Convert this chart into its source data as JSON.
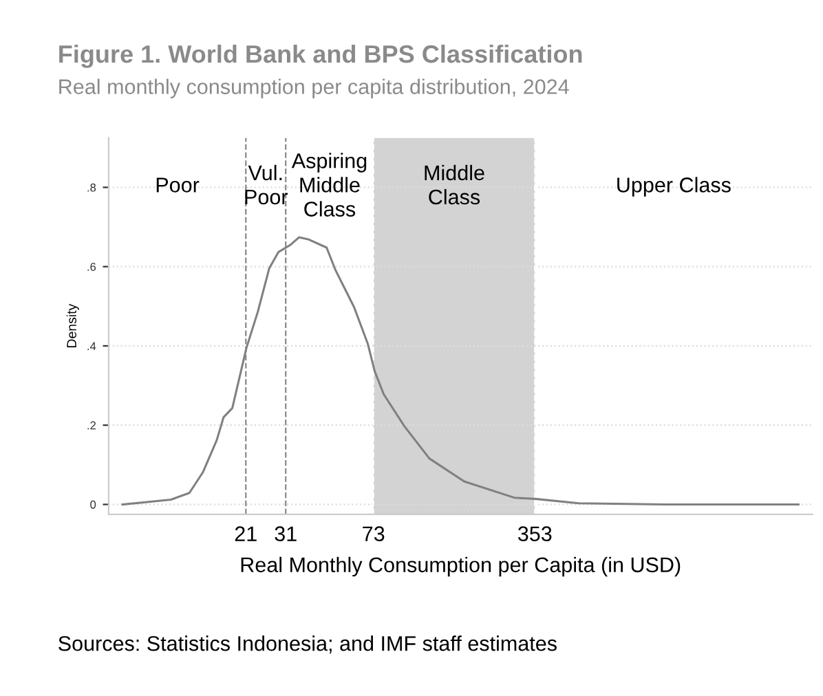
{
  "chart_data": {
    "type": "line",
    "title": "Figure 1. World Bank and BPS Classification",
    "subtitle": "Real monthly consumption per capita distribution, 2024",
    "xlabel": "Real Monthly Consumption per Capita (in USD)",
    "ylabel": "Density",
    "log": "x",
    "xlim": [
      5.5,
      5300
    ],
    "xticks": [
      21,
      31,
      73,
      353
    ],
    "ylim": [
      -0.025,
      0.925
    ],
    "yticks": [
      {
        "value": 0,
        "label": "0"
      },
      {
        "value": 0.2,
        "label": ".2"
      },
      {
        "value": 0.4,
        "label": ".4"
      },
      {
        "value": 0.6,
        "label": ".6"
      },
      {
        "value": 0.8,
        "label": ".8"
      }
    ],
    "grid": "y",
    "legend": false,
    "x": [
      6.3,
      10.1,
      12.1,
      13.8,
      15.8,
      16.9,
      18.4,
      21.1,
      23.6,
      26.4,
      28.9,
      32.3,
      35.3,
      38.6,
      46.2,
      50.5,
      60.4,
      69.1,
      73.9,
      80.7,
      98.8,
      126,
      177,
      289,
      354,
      541,
      1265,
      4630
    ],
    "series": [
      {
        "color": "#808080",
        "values": [
          0,
          0.012,
          0.029,
          0.081,
          0.162,
          0.22,
          0.243,
          0.394,
          0.486,
          0.596,
          0.637,
          0.654,
          0.674,
          0.669,
          0.648,
          0.59,
          0.498,
          0.405,
          0.336,
          0.278,
          0.197,
          0.116,
          0.058,
          0.017,
          0.014,
          0.003,
          0,
          0
        ]
      }
    ],
    "ref_lines": [
      {
        "axis": "x",
        "value": 21,
        "color": "#888888",
        "line_style": "dashed"
      },
      {
        "axis": "x",
        "value": 31,
        "color": "#888888",
        "line_style": "dashed"
      },
      {
        "axis": "x",
        "value": 73,
        "color": "#ffffff",
        "line_style": "dashed"
      },
      {
        "axis": "x",
        "value": 353,
        "color": "#ffffff",
        "line_style": "dashed"
      }
    ],
    "bands": [
      {
        "axis": "x",
        "from": 73,
        "to": 353,
        "color": "#d3d3d3"
      }
    ],
    "annotations": [
      "Poor",
      "Vul.\nPoor",
      "Aspiring\nMiddle\nClass",
      "Middle\nClass",
      "Upper Class",
      "Sources: Statistics Indonesia; and IMF staff estimates"
    ]
  }
}
